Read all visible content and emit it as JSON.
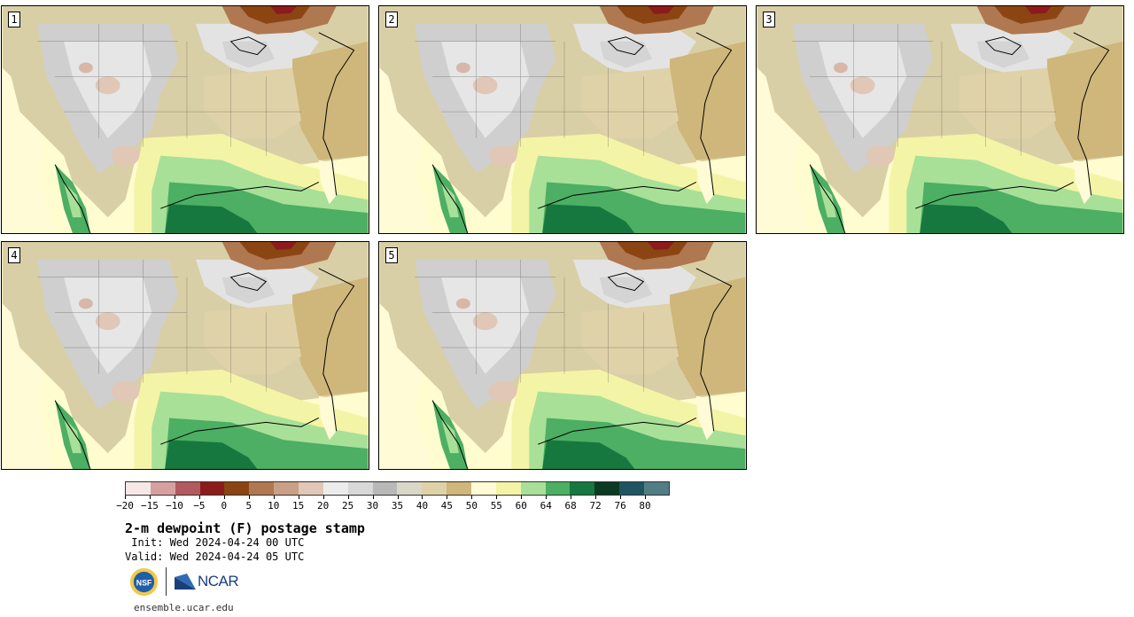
{
  "panels": [
    {
      "label": "1"
    },
    {
      "label": "2"
    },
    {
      "label": "3"
    },
    {
      "label": "4"
    },
    {
      "label": "5"
    }
  ],
  "colorbar": {
    "ticks": [
      "−20",
      "−15",
      "−10",
      "−5",
      "0",
      "5",
      "10",
      "15",
      "20",
      "25",
      "30",
      "35",
      "40",
      "45",
      "50",
      "55",
      "60",
      "64",
      "68",
      "72",
      "76",
      "80"
    ],
    "colors": [
      "#f5e8e6",
      "#d7a0a0",
      "#b35a5e",
      "#8c1c1c",
      "#8b4513",
      "#b07850",
      "#c8a085",
      "#e0c7b6",
      "#ececec",
      "#d8d8d8",
      "#b8b8b8",
      "#d9d7c8",
      "#e0d2a8",
      "#cfb67a",
      "#fffbd6",
      "#f4f4a6",
      "#a8e098",
      "#4caf63",
      "#16783e",
      "#0b3a22",
      "#1f5560",
      "#517d84"
    ]
  },
  "title": "2-m dewpoint (F) postage stamp",
  "init_line": " Init: Wed 2024-04-24 00 UTC",
  "valid_line": "Valid: Wed 2024-04-24 05 UTC",
  "logos": {
    "nsf": "NSF",
    "ncar": "NCAR"
  },
  "website": "ensemble.ucar.edu"
}
